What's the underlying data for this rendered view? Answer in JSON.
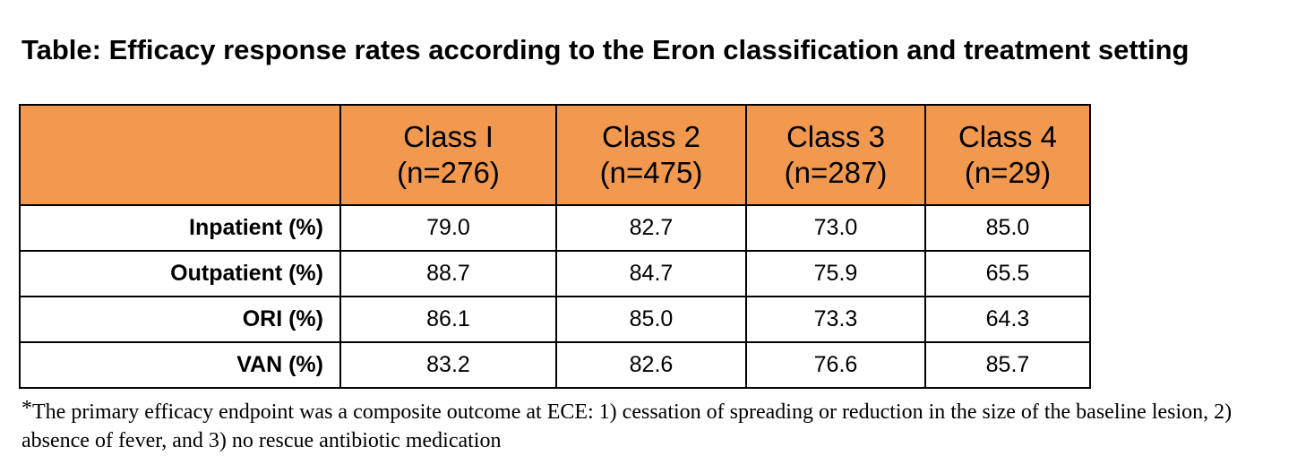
{
  "title": "Table: Efficacy response rates according to the Eron classification and treatment setting",
  "header_color": "#f2994f",
  "columns": [
    {
      "name": "Class I",
      "n": "(n=276)"
    },
    {
      "name": "Class 2",
      "n": "(n=475)"
    },
    {
      "name": "Class 3",
      "n": "(n=287)"
    },
    {
      "name": "Class 4",
      "n": "(n=29)"
    }
  ],
  "rows": [
    {
      "label": "Inpatient (%)",
      "values": [
        "79.0",
        "82.7",
        "73.0",
        "85.0"
      ]
    },
    {
      "label": "Outpatient (%)",
      "values": [
        "88.7",
        "84.7",
        "75.9",
        "65.5"
      ]
    },
    {
      "label": "ORI (%)",
      "values": [
        "86.1",
        "85.0",
        "73.3",
        "64.3"
      ]
    },
    {
      "label": "VAN (%)",
      "values": [
        "83.2",
        "82.6",
        "76.6",
        "85.7"
      ]
    }
  ],
  "footnote": {
    "marker": "*",
    "text": "The primary efficacy endpoint was a composite outcome at ECE: 1) cessation of spreading or reduction in the size of the baseline lesion, 2) absence of fever, and 3) no rescue antibiotic medication"
  }
}
